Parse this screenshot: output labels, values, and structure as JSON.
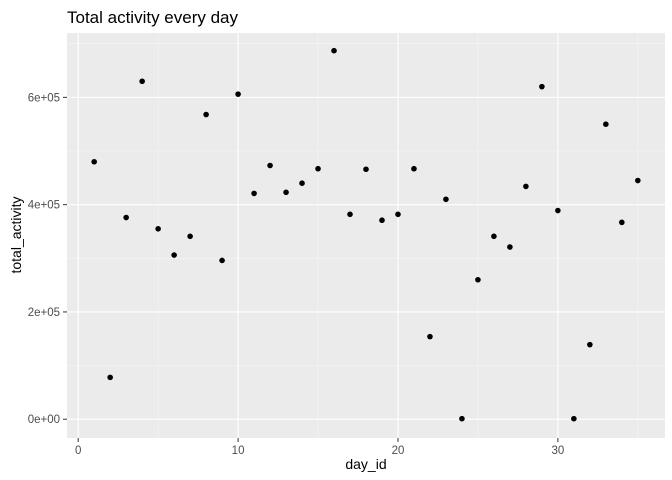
{
  "chart_data": {
    "type": "scatter",
    "title": "Total activity every day",
    "xlabel": "day_id",
    "ylabel": "total_activity",
    "xlim": [
      -0.7,
      36.7
    ],
    "ylim": [
      -35000,
      720000
    ],
    "x_ticks": [
      0,
      10,
      20,
      30
    ],
    "x_tick_labels": [
      "0",
      "10",
      "20",
      "30"
    ],
    "y_ticks": [
      0,
      200000,
      400000,
      600000
    ],
    "y_tick_labels": [
      "0e+00",
      "2e+05",
      "4e+05",
      "6e+05"
    ],
    "grid": true,
    "legend": "none",
    "colors": {
      "panel_background": "#ebebeb",
      "grid_major": "#ffffff",
      "grid_minor": "#f5f5f5",
      "point": "#000000",
      "tick": "#333333"
    },
    "points": [
      {
        "x": 1,
        "y": 480000
      },
      {
        "x": 2,
        "y": 78000
      },
      {
        "x": 3,
        "y": 376000
      },
      {
        "x": 4,
        "y": 630000
      },
      {
        "x": 5,
        "y": 355000
      },
      {
        "x": 6,
        "y": 306000
      },
      {
        "x": 7,
        "y": 341000
      },
      {
        "x": 8,
        "y": 568000
      },
      {
        "x": 9,
        "y": 296000
      },
      {
        "x": 10,
        "y": 606000
      },
      {
        "x": 11,
        "y": 421000
      },
      {
        "x": 12,
        "y": 473000
      },
      {
        "x": 13,
        "y": 423000
      },
      {
        "x": 14,
        "y": 440000
      },
      {
        "x": 15,
        "y": 467000
      },
      {
        "x": 16,
        "y": 687000
      },
      {
        "x": 17,
        "y": 382000
      },
      {
        "x": 18,
        "y": 466000
      },
      {
        "x": 19,
        "y": 371000
      },
      {
        "x": 20,
        "y": 382000
      },
      {
        "x": 21,
        "y": 467000
      },
      {
        "x": 22,
        "y": 154000
      },
      {
        "x": 23,
        "y": 410000
      },
      {
        "x": 24,
        "y": 1000
      },
      {
        "x": 25,
        "y": 260000
      },
      {
        "x": 26,
        "y": 341000
      },
      {
        "x": 27,
        "y": 321000
      },
      {
        "x": 28,
        "y": 434000
      },
      {
        "x": 29,
        "y": 620000
      },
      {
        "x": 30,
        "y": 389000
      },
      {
        "x": 31,
        "y": 1000
      },
      {
        "x": 32,
        "y": 139000
      },
      {
        "x": 33,
        "y": 550000
      },
      {
        "x": 34,
        "y": 367000
      },
      {
        "x": 35,
        "y": 445000
      }
    ]
  }
}
